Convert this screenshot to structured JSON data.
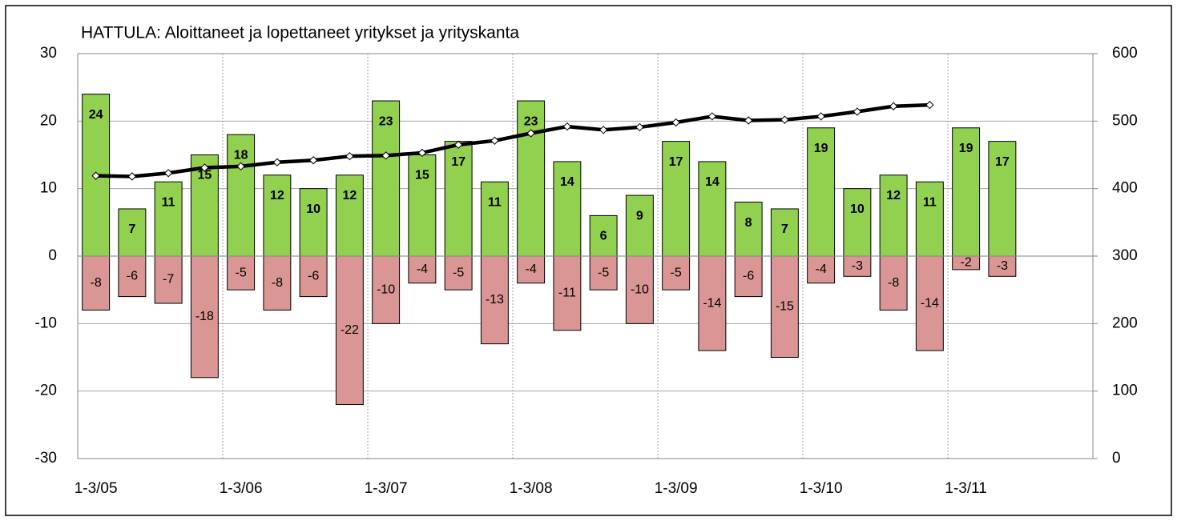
{
  "chart_data": {
    "type": "bar",
    "title": "HATTULA: Aloittaneet ja lopettaneet yritykset ja yrityskanta",
    "categories": [
      "1-3/05",
      null,
      null,
      null,
      "1-3/06",
      null,
      null,
      null,
      "1-3/07",
      null,
      null,
      null,
      "1-3/08",
      null,
      null,
      null,
      "1-3/09",
      null,
      null,
      null,
      "1-3/10",
      null,
      null,
      null,
      "1-3/11",
      null,
      null,
      null
    ],
    "series": [
      {
        "color": "#92d050",
        "values": [
          24,
          7,
          11,
          15,
          18,
          12,
          10,
          12,
          23,
          15,
          17,
          11,
          23,
          14,
          6,
          9,
          17,
          14,
          8,
          7,
          19,
          10,
          12,
          11,
          19,
          17,
          null,
          null
        ]
      },
      {
        "color": "#da9694",
        "values": [
          -8,
          -6,
          -7,
          -18,
          -5,
          -8,
          -6,
          -22,
          -10,
          -4,
          -5,
          -13,
          -4,
          -11,
          -5,
          -10,
          -5,
          -14,
          -6,
          -15,
          -4,
          -3,
          -8,
          -14,
          -2,
          -3,
          null,
          null
        ]
      },
      {
        "type": "line",
        "axis": "y2",
        "color": "#000000",
        "values": [
          419,
          418,
          423,
          431,
          433,
          439,
          442,
          448,
          449,
          453,
          465,
          471,
          482,
          492,
          487,
          491,
          498,
          507,
          501,
          502,
          507,
          514,
          522,
          524,
          null,
          null,
          null,
          null
        ]
      }
    ],
    "ylim": [
      -30,
      30
    ],
    "yticks": [
      -30,
      -20,
      -10,
      0,
      10,
      20,
      30
    ],
    "y2lim": [
      0,
      600
    ],
    "y2ticks": [
      0,
      100,
      200,
      300,
      400,
      500,
      600
    ],
    "grid": true
  }
}
